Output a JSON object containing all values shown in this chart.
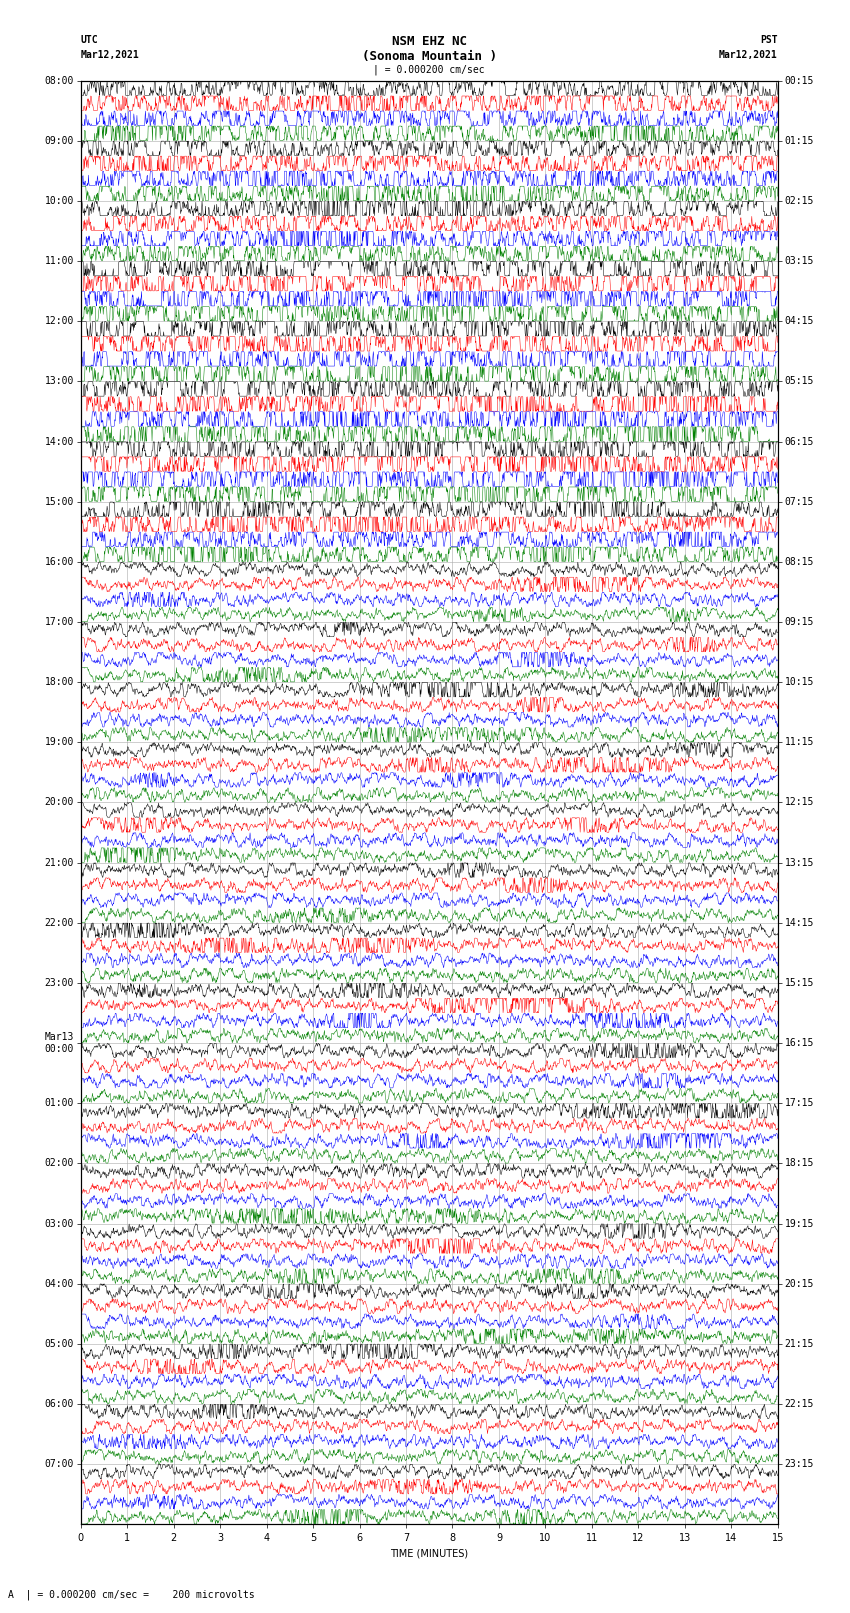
{
  "title_line1": "NSM EHZ NC",
  "title_line2": "(Sonoma Mountain )",
  "title_scale": "| = 0.000200 cm/sec",
  "left_header_line1": "UTC",
  "left_header_line2": "Mar12,2021",
  "right_header_line1": "PST",
  "right_header_line2": "Mar12,2021",
  "xlabel": "TIME (MINUTES)",
  "footer": "A  | = 0.000200 cm/sec =    200 microvolts",
  "xlim": [
    0,
    15
  ],
  "xticks": [
    0,
    1,
    2,
    3,
    4,
    5,
    6,
    7,
    8,
    9,
    10,
    11,
    12,
    13,
    14,
    15
  ],
  "background_color": "#ffffff",
  "trace_colors": [
    "black",
    "red",
    "blue",
    "green"
  ],
  "utc_labels": [
    "08:00",
    "09:00",
    "10:00",
    "11:00",
    "12:00",
    "13:00",
    "14:00",
    "15:00",
    "16:00",
    "17:00",
    "18:00",
    "19:00",
    "20:00",
    "21:00",
    "22:00",
    "23:00",
    "Mar13\n00:00",
    "01:00",
    "02:00",
    "03:00",
    "04:00",
    "05:00",
    "06:00",
    "07:00"
  ],
  "pst_labels": [
    "00:15",
    "01:15",
    "02:15",
    "03:15",
    "04:15",
    "05:15",
    "06:15",
    "07:15",
    "08:15",
    "09:15",
    "10:15",
    "11:15",
    "12:15",
    "13:15",
    "14:15",
    "15:15",
    "16:15",
    "17:15",
    "18:15",
    "19:15",
    "20:15",
    "21:15",
    "22:15",
    "23:15"
  ],
  "num_rows": 24,
  "traces_per_row": 4,
  "fig_width": 8.5,
  "fig_height": 16.13,
  "dpi": 100,
  "plot_bg": "#ffffff",
  "spine_color": "#000000",
  "grid_color": "#aaaaaa",
  "title_fontsize": 9,
  "label_fontsize": 7,
  "tick_fontsize": 7,
  "footer_fontsize": 7,
  "trace_lw": 0.35,
  "base_amp": 0.06,
  "active_rows": [
    0,
    1,
    2,
    3,
    4,
    5,
    6,
    7
  ],
  "active_amp_scale": 2.5,
  "high_activity_rows": [
    3,
    4,
    5,
    6
  ],
  "high_amp_scale": 4.0
}
